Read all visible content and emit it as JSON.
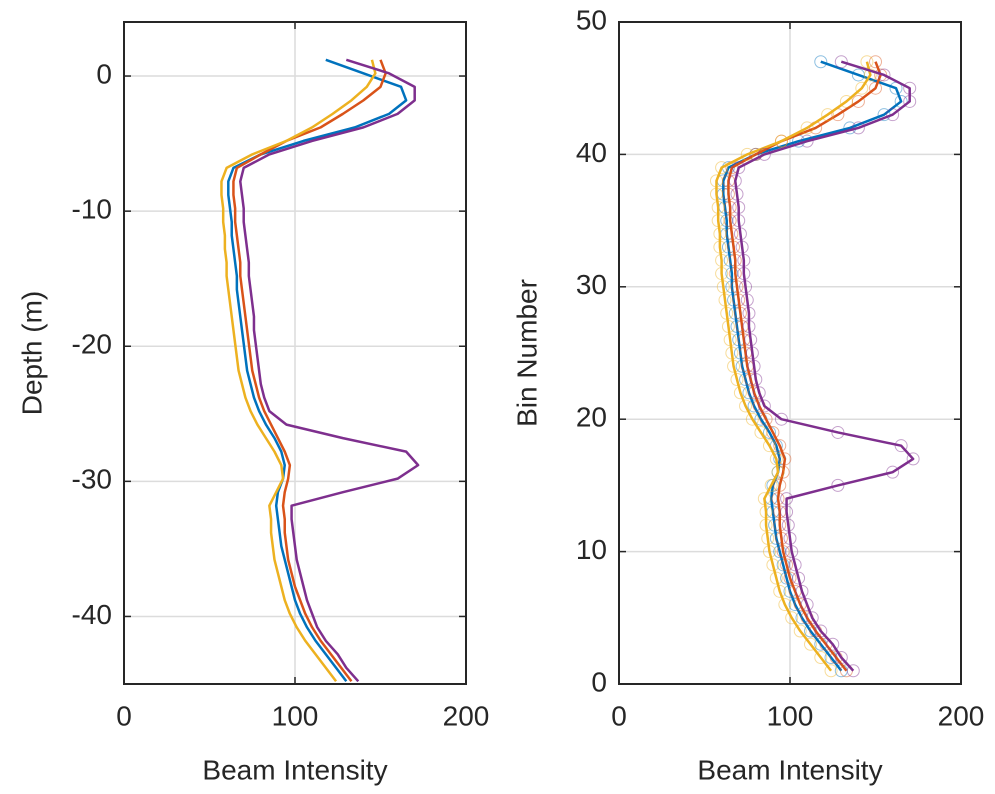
{
  "chart_data": [
    {
      "type": "line",
      "xlabel": "Beam Intensity",
      "ylabel": "Depth (m)",
      "grid": true,
      "markers": false,
      "xlim": [
        0,
        200
      ],
      "xticks": [
        0,
        100,
        200
      ],
      "ylim": [
        -45,
        4
      ],
      "yticks": [
        -40,
        -30,
        -20,
        -10,
        0
      ],
      "y": [
        -44.8,
        -43.8,
        -42.8,
        -41.8,
        -40.8,
        -39.8,
        -38.8,
        -37.8,
        -36.8,
        -35.8,
        -34.8,
        -33.8,
        -32.8,
        -31.8,
        -30.8,
        -29.8,
        -28.8,
        -27.8,
        -26.8,
        -25.8,
        -24.8,
        -23.8,
        -22.8,
        -21.8,
        -20.8,
        -19.8,
        -18.8,
        -17.8,
        -16.8,
        -15.8,
        -14.8,
        -13.8,
        -12.8,
        -11.8,
        -10.8,
        -9.8,
        -8.8,
        -7.8,
        -6.8,
        -5.8,
        -4.8,
        -3.8,
        -2.8,
        -1.8,
        -0.8,
        0.2,
        1.2
      ],
      "series": [
        {
          "color": "#0072BD",
          "values": [
            130,
            124,
            118,
            112,
            107,
            103,
            100,
            98,
            96,
            94,
            92,
            91,
            90,
            89,
            90,
            93,
            94,
            92,
            88,
            83,
            79,
            76,
            74,
            72,
            71,
            70,
            69,
            68,
            67,
            66,
            66,
            65,
            64,
            63,
            63,
            62,
            61,
            61,
            64,
            80,
            105,
            135,
            155,
            165,
            162,
            140,
            118
          ]
        },
        {
          "color": "#D95319",
          "values": [
            133,
            127,
            121,
            115,
            110,
            106,
            103,
            100,
            98,
            96,
            95,
            94,
            94,
            93,
            94,
            96,
            97,
            94,
            90,
            86,
            82,
            79,
            77,
            75,
            74,
            73,
            72,
            71,
            70,
            69,
            68,
            68,
            67,
            66,
            65,
            65,
            64,
            64,
            66,
            80,
            95,
            115,
            128,
            140,
            150,
            153,
            150
          ]
        },
        {
          "color": "#EDB120",
          "values": [
            124,
            118,
            112,
            106,
            101,
            97,
            94,
            92,
            90,
            88,
            87,
            86,
            86,
            85,
            89,
            93,
            92,
            88,
            83,
            78,
            74,
            71,
            69,
            67,
            66,
            65,
            64,
            63,
            62,
            61,
            60,
            60,
            59,
            59,
            58,
            58,
            57,
            57,
            60,
            75,
            95,
            110,
            122,
            133,
            142,
            147,
            145
          ]
        },
        {
          "color": "#7E2F8E",
          "values": [
            137,
            130,
            125,
            118,
            113,
            110,
            107,
            105,
            103,
            101,
            100,
            99,
            98,
            98,
            128,
            160,
            172,
            165,
            128,
            95,
            85,
            82,
            80,
            79,
            78,
            77,
            76,
            76,
            75,
            74,
            73,
            73,
            72,
            71,
            70,
            70,
            69,
            68,
            70,
            85,
            110,
            140,
            160,
            170,
            170,
            155,
            130
          ]
        }
      ]
    },
    {
      "type": "line",
      "xlabel": "Beam Intensity",
      "ylabel": "Bin Number",
      "grid": true,
      "markers": true,
      "xlim": [
        0,
        200
      ],
      "xticks": [
        0,
        100,
        200
      ],
      "ylim": [
        0,
        50
      ],
      "yticks": [
        0,
        10,
        20,
        30,
        40,
        50
      ],
      "y": [
        1,
        2,
        3,
        4,
        5,
        6,
        7,
        8,
        9,
        10,
        11,
        12,
        13,
        14,
        15,
        16,
        17,
        18,
        19,
        20,
        21,
        22,
        23,
        24,
        25,
        26,
        27,
        28,
        29,
        30,
        31,
        32,
        33,
        34,
        35,
        36,
        37,
        38,
        39,
        40,
        41,
        42,
        43,
        44,
        45,
        46,
        47
      ],
      "series": [
        {
          "color": "#0072BD",
          "values": [
            130,
            124,
            118,
            112,
            107,
            103,
            100,
            98,
            96,
            94,
            92,
            91,
            90,
            89,
            90,
            93,
            94,
            92,
            88,
            83,
            79,
            76,
            74,
            72,
            71,
            70,
            69,
            68,
            67,
            66,
            66,
            65,
            64,
            63,
            63,
            62,
            61,
            61,
            64,
            80,
            105,
            135,
            155,
            165,
            162,
            140,
            118
          ]
        },
        {
          "color": "#D95319",
          "values": [
            133,
            127,
            121,
            115,
            110,
            106,
            103,
            100,
            98,
            96,
            95,
            94,
            94,
            93,
            94,
            96,
            97,
            94,
            90,
            86,
            82,
            79,
            77,
            75,
            74,
            73,
            72,
            71,
            70,
            69,
            68,
            68,
            67,
            66,
            65,
            65,
            64,
            64,
            66,
            80,
            95,
            115,
            128,
            140,
            150,
            153,
            150
          ]
        },
        {
          "color": "#EDB120",
          "values": [
            124,
            118,
            112,
            106,
            101,
            97,
            94,
            92,
            90,
            88,
            87,
            86,
            86,
            85,
            89,
            93,
            92,
            88,
            83,
            78,
            74,
            71,
            69,
            67,
            66,
            65,
            64,
            63,
            62,
            61,
            60,
            60,
            59,
            59,
            58,
            58,
            57,
            57,
            60,
            75,
            95,
            110,
            122,
            133,
            142,
            147,
            145
          ]
        },
        {
          "color": "#7E2F8E",
          "values": [
            137,
            130,
            125,
            118,
            113,
            110,
            107,
            105,
            103,
            101,
            100,
            99,
            98,
            98,
            128,
            160,
            172,
            165,
            128,
            95,
            85,
            82,
            80,
            79,
            78,
            77,
            76,
            76,
            75,
            74,
            73,
            73,
            72,
            71,
            70,
            70,
            69,
            68,
            70,
            85,
            110,
            140,
            160,
            170,
            170,
            155,
            130
          ]
        }
      ]
    }
  ]
}
